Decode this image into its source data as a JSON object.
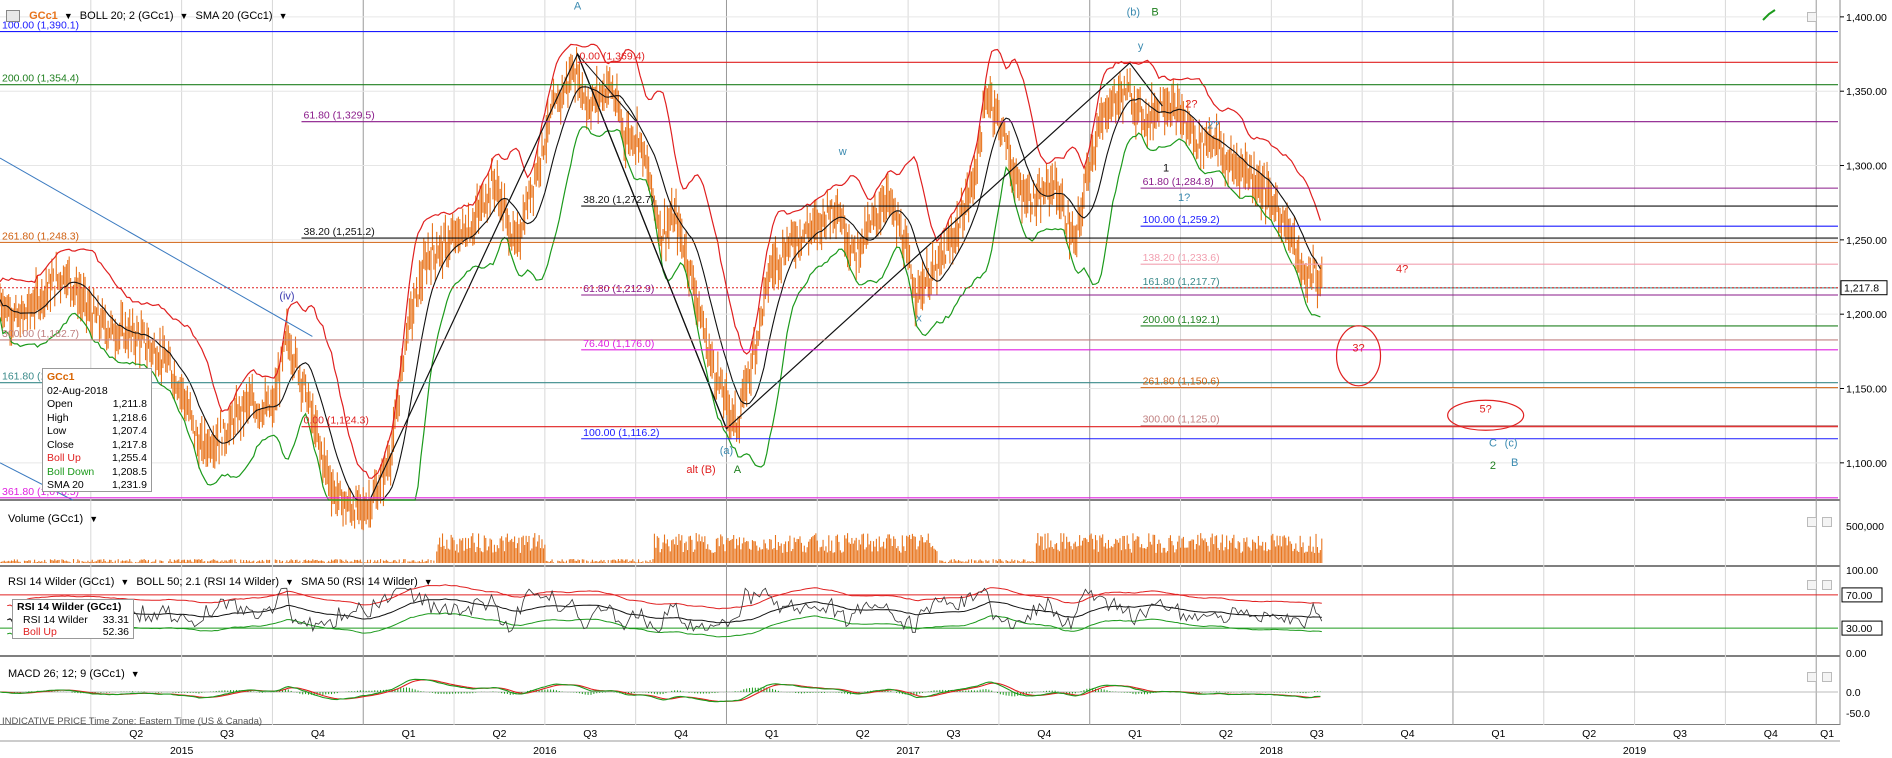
{
  "main_header": {
    "symbol": "GCc1",
    "boll": "BOLL 20; 2 (GCc1)",
    "sma": "SMA 20 (GCc1)"
  },
  "volume_header": {
    "label": "Volume (GCc1)"
  },
  "rsi_header": {
    "rsi": "RSI 14 Wilder (GCc1)",
    "boll": "BOLL 50; 2.1 (RSI 14 Wilder)",
    "sma": "SMA 50 (RSI 14 Wilder)"
  },
  "macd_header": {
    "label": "MACD 26; 12; 9 (GCc1)"
  },
  "info_box": {
    "title": "GCc1",
    "date": "02-Aug-2018",
    "rows": [
      {
        "label": "Open",
        "value": "1,211.8"
      },
      {
        "label": "High",
        "value": "1,218.6"
      },
      {
        "label": "Low",
        "value": "1,207.4"
      },
      {
        "label": "Close",
        "value": "1,217.8"
      },
      {
        "label": "Boll Up",
        "value": "1,255.4"
      },
      {
        "label": "Boll Down",
        "value": "1,208.5"
      },
      {
        "label": "SMA 20",
        "value": "1,231.9"
      }
    ]
  },
  "rsi_box": {
    "title": "RSI 14 Wilder (GCc1)",
    "rows": [
      {
        "label": "RSI 14 Wilder",
        "value": "33.31"
      },
      {
        "label": "Boll Up",
        "value": "52.36"
      }
    ]
  },
  "footer": {
    "text": "INDICATIVE PRICE   Time Zone: Eastern Time (US & Canada)"
  },
  "chart_data": {
    "type": "line",
    "colors": {
      "price": "#e8741c",
      "boll": "#e02020",
      "boll_low": "#1c9a1c",
      "sma": "#111111",
      "volume": "#e8741c"
    },
    "y_axis": {
      "range": [
        1075,
        1410
      ],
      "ticks": [
        {
          "v": 1100,
          "l": "1,100.00"
        },
        {
          "v": 1150,
          "l": "1,150.00"
        },
        {
          "v": 1200,
          "l": "1,200.00"
        },
        {
          "v": 1250,
          "l": "1,250.00"
        },
        {
          "v": 1300,
          "l": "1,300.00"
        },
        {
          "v": 1350,
          "l": "1,350.00"
        },
        {
          "v": 1400,
          "l": "1,400.00"
        }
      ],
      "last_price": {
        "v": 1217.8,
        "l": "1,217.8"
      }
    },
    "x_axis": {
      "quarters": [
        {
          "x": 2015.375,
          "l": "Q2"
        },
        {
          "x": 2015.625,
          "l": "Q3"
        },
        {
          "x": 2015.875,
          "l": "Q4"
        },
        {
          "x": 2016.125,
          "l": "Q1"
        },
        {
          "x": 2016.375,
          "l": "Q2"
        },
        {
          "x": 2016.625,
          "l": "Q3"
        },
        {
          "x": 2016.875,
          "l": "Q4"
        },
        {
          "x": 2017.125,
          "l": "Q1"
        },
        {
          "x": 2017.375,
          "l": "Q2"
        },
        {
          "x": 2017.625,
          "l": "Q3"
        },
        {
          "x": 2017.875,
          "l": "Q4"
        },
        {
          "x": 2018.125,
          "l": "Q1"
        },
        {
          "x": 2018.375,
          "l": "Q2"
        },
        {
          "x": 2018.625,
          "l": "Q3"
        },
        {
          "x": 2018.875,
          "l": "Q4"
        },
        {
          "x": 2019.125,
          "l": "Q1"
        },
        {
          "x": 2019.375,
          "l": "Q2"
        },
        {
          "x": 2019.625,
          "l": "Q3"
        },
        {
          "x": 2019.875,
          "l": "Q4"
        },
        {
          "x": 2020.03,
          "l": "Q1"
        }
      ],
      "years": [
        {
          "x": 2015.5,
          "l": "2015"
        },
        {
          "x": 2016.5,
          "l": "2016"
        },
        {
          "x": 2017.5,
          "l": "2017"
        },
        {
          "x": 2018.5,
          "l": "2018"
        },
        {
          "x": 2019.5,
          "l": "2019"
        }
      ]
    },
    "price_path": [
      [
        2015.0,
        1210
      ],
      [
        2015.05,
        1195
      ],
      [
        2015.12,
        1215
      ],
      [
        2015.18,
        1228
      ],
      [
        2015.25,
        1200
      ],
      [
        2015.3,
        1190
      ],
      [
        2015.38,
        1185
      ],
      [
        2015.45,
        1170
      ],
      [
        2015.5,
        1150
      ],
      [
        2015.55,
        1110
      ],
      [
        2015.62,
        1120
      ],
      [
        2015.68,
        1140
      ],
      [
        2015.75,
        1135
      ],
      [
        2015.79,
        1185
      ],
      [
        2015.84,
        1150
      ],
      [
        2015.88,
        1110
      ],
      [
        2015.92,
        1080
      ],
      [
        2015.96,
        1070
      ],
      [
        2016.0,
        1068
      ],
      [
        2016.04,
        1080
      ],
      [
        2016.08,
        1110
      ],
      [
        2016.12,
        1190
      ],
      [
        2016.18,
        1240
      ],
      [
        2016.22,
        1245
      ],
      [
        2016.3,
        1260
      ],
      [
        2016.36,
        1290
      ],
      [
        2016.42,
        1245
      ],
      [
        2016.48,
        1300
      ],
      [
        2016.52,
        1335
      ],
      [
        2016.58,
        1365
      ],
      [
        2016.62,
        1340
      ],
      [
        2016.68,
        1355
      ],
      [
        2016.72,
        1320
      ],
      [
        2016.76,
        1320
      ],
      [
        2016.82,
        1255
      ],
      [
        2016.86,
        1265
      ],
      [
        2016.9,
        1230
      ],
      [
        2016.95,
        1175
      ],
      [
        2017.0,
        1140
      ],
      [
        2017.03,
        1125
      ],
      [
        2017.08,
        1180
      ],
      [
        2017.12,
        1230
      ],
      [
        2017.18,
        1250
      ],
      [
        2017.25,
        1260
      ],
      [
        2017.3,
        1275
      ],
      [
        2017.35,
        1240
      ],
      [
        2017.4,
        1260
      ],
      [
        2017.44,
        1280
      ],
      [
        2017.48,
        1255
      ],
      [
        2017.52,
        1215
      ],
      [
        2017.58,
        1230
      ],
      [
        2017.64,
        1260
      ],
      [
        2017.68,
        1290
      ],
      [
        2017.72,
        1350
      ],
      [
        2017.76,
        1325
      ],
      [
        2017.8,
        1285
      ],
      [
        2017.86,
        1275
      ],
      [
        2017.9,
        1290
      ],
      [
        2017.96,
        1245
      ],
      [
        2018.0,
        1305
      ],
      [
        2018.05,
        1340
      ],
      [
        2018.1,
        1350
      ],
      [
        2018.16,
        1330
      ],
      [
        2018.2,
        1345
      ],
      [
        2018.26,
        1330
      ],
      [
        2018.3,
        1315
      ],
      [
        2018.34,
        1320
      ],
      [
        2018.38,
        1300
      ],
      [
        2018.42,
        1300
      ],
      [
        2018.46,
        1290
      ],
      [
        2018.52,
        1270
      ],
      [
        2018.56,
        1250
      ],
      [
        2018.59,
        1223
      ],
      [
        2018.62,
        1230
      ],
      [
        2018.64,
        1215
      ]
    ],
    "price_range_series": {
      "name": "price"
    },
    "horizontal_levels": [
      {
        "label": "100.00 (1,390.1)",
        "v": 1390.1,
        "c": "#1a1aff"
      },
      {
        "label": "0.00 (1,369.4)",
        "v": 1369.4,
        "c": "#e02020"
      },
      {
        "label": "200.00 (1,354.4)",
        "v": 1354.4,
        "c": "#208020"
      },
      {
        "label": "61.80 (1,329.5)",
        "v": 1329.5,
        "c": "#8a1a8a"
      },
      {
        "label": "61.80 (1,284.8)",
        "v": 1284.8,
        "c": "#8a1a8a"
      },
      {
        "label": "38.20 (1,272.7)",
        "v": 1272.7,
        "c": "#111111"
      },
      {
        "label": "100.00 (1,259.2)",
        "v": 1259.2,
        "c": "#1a1aff"
      },
      {
        "label": "38.20 (1,251.2)",
        "v": 1251.2,
        "c": "#111111"
      },
      {
        "label": "261.80 (1,248.3)",
        "v": 1248.3,
        "c": "#d06010"
      },
      {
        "label": "138.20 (1,233.6)",
        "v": 1233.6,
        "c": "#f2a0b0"
      },
      {
        "label": "161.80 (1,217.7)",
        "v": 1217.7,
        "c": "#3a8a8a"
      },
      {
        "label": "61.80 (1,212.9)",
        "v": 1212.9,
        "c": "#8a1a8a"
      },
      {
        "label": "200.00 (1,192.1)",
        "v": 1192.1,
        "c": "#208020"
      },
      {
        "label": "300.00 (1,182.7)",
        "v": 1182.7,
        "c": "#c08080"
      },
      {
        "label": "76.40 (1,176.0)",
        "v": 1176.0,
        "c": "#e020e0"
      },
      {
        "label": "161.80 (1,153.9)",
        "v": 1153.9,
        "c": "#3a8a8a"
      },
      {
        "label": "261.80 (1,150.6)",
        "v": 1150.6,
        "c": "#d06010"
      },
      {
        "label": "300.00 (1,125.0)",
        "v": 1125.0,
        "c": "#c08080"
      },
      {
        "label": "0.00 (1,124.3)",
        "v": 1124.3,
        "c": "#e02020"
      },
      {
        "label": "100.00 (1,116.2)",
        "v": 1116.2,
        "c": "#1a1aff"
      },
      {
        "label": "361.80 (1,076.5)",
        "v": 1076.5,
        "c": "#e020e0"
      }
    ],
    "wave_labels": [
      {
        "t": "A",
        "x": 2016.59,
        "y": 1405,
        "c": "#3a8ab0"
      },
      {
        "t": "(b)",
        "x": 2018.12,
        "y": 1401,
        "c": "#3a8ab0"
      },
      {
        "t": "B",
        "x": 2018.18,
        "y": 1401,
        "c": "#208020"
      },
      {
        "t": "y",
        "x": 2018.14,
        "y": 1378,
        "c": "#3a8ab0"
      },
      {
        "t": "w",
        "x": 2017.32,
        "y": 1307,
        "c": "#3a8ab0"
      },
      {
        "t": "x",
        "x": 2017.53,
        "y": 1195,
        "c": "#3a8ab0"
      },
      {
        "t": "(iv)",
        "x": 2015.79,
        "y": 1210,
        "c": "#3a3ab0"
      },
      {
        "t": "(a)",
        "x": 2017.0,
        "y": 1106,
        "c": "#3a8ab0"
      },
      {
        "t": "alt (B)",
        "x": 2016.93,
        "y": 1093,
        "c": "#e02020"
      },
      {
        "t": "A",
        "x": 2017.03,
        "y": 1093,
        "c": "#208020"
      },
      {
        "t": "2?",
        "x": 2018.28,
        "y": 1339,
        "c": "#e02020"
      },
      {
        "t": "2?",
        "x": 2018.34,
        "y": 1325,
        "c": "#3a8ab0"
      },
      {
        "t": "1",
        "x": 2018.21,
        "y": 1296,
        "c": "#111111"
      },
      {
        "t": "1?",
        "x": 2018.26,
        "y": 1276,
        "c": "#3a8ab0"
      },
      {
        "t": "4?",
        "x": 2018.86,
        "y": 1228,
        "c": "#e02020"
      },
      {
        "t": "3?",
        "x": 2018.74,
        "y": 1175,
        "c": "#e02020"
      },
      {
        "t": "5?",
        "x": 2019.09,
        "y": 1134,
        "c": "#e02020"
      },
      {
        "t": "C",
        "x": 2019.11,
        "y": 1111,
        "c": "#3a8ab0"
      },
      {
        "t": "(c)",
        "x": 2019.16,
        "y": 1111,
        "c": "#3a8ab0"
      },
      {
        "t": "2",
        "x": 2019.11,
        "y": 1096,
        "c": "#208020"
      },
      {
        "t": "B",
        "x": 2019.17,
        "y": 1098,
        "c": "#3a8ab0"
      }
    ],
    "volume_axis": {
      "tick": "500,000"
    },
    "rsi_axis": {
      "ticks": [
        {
          "v": 100,
          "l": "100.00"
        },
        {
          "v": 70,
          "l": "70.00"
        },
        {
          "v": 30,
          "l": "30.00"
        },
        {
          "v": 0,
          "l": "0.00"
        }
      ]
    },
    "macd_axis": {
      "ticks": [
        {
          "v": 0,
          "l": "0.0"
        },
        {
          "v": -50,
          "l": "-50.0"
        }
      ]
    }
  }
}
